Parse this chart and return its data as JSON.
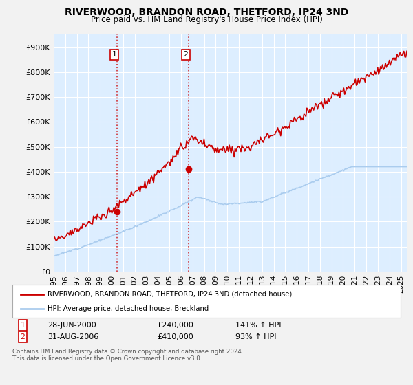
{
  "title": "RIVERWOOD, BRANDON ROAD, THETFORD, IP24 3ND",
  "subtitle": "Price paid vs. HM Land Registry's House Price Index (HPI)",
  "ylabel_ticks": [
    "£0",
    "£100K",
    "£200K",
    "£300K",
    "£400K",
    "£500K",
    "£600K",
    "£700K",
    "£800K",
    "£900K"
  ],
  "ytick_values": [
    0,
    100000,
    200000,
    300000,
    400000,
    500000,
    600000,
    700000,
    800000,
    900000
  ],
  "ylim": [
    0,
    950000
  ],
  "fig_bg_color": "#f2f2f2",
  "plot_bg_color": "#ddeeff",
  "grid_color": "#ffffff",
  "red_color": "#cc0000",
  "blue_color": "#aaccee",
  "sale1_year": 2000.49,
  "sale1_price": 240000,
  "sale1_date": "28-JUN-2000",
  "sale1_pct": "141%",
  "sale2_year": 2006.66,
  "sale2_price": 410000,
  "sale2_date": "31-AUG-2006",
  "sale2_pct": "93%",
  "legend_line1": "RIVERWOOD, BRANDON ROAD, THETFORD, IP24 3ND (detached house)",
  "legend_line2": "HPI: Average price, detached house, Breckland",
  "footnote": "Contains HM Land Registry data © Crown copyright and database right 2024.\nThis data is licensed under the Open Government Licence v3.0.",
  "xmin": 1995,
  "xmax": 2025.5
}
